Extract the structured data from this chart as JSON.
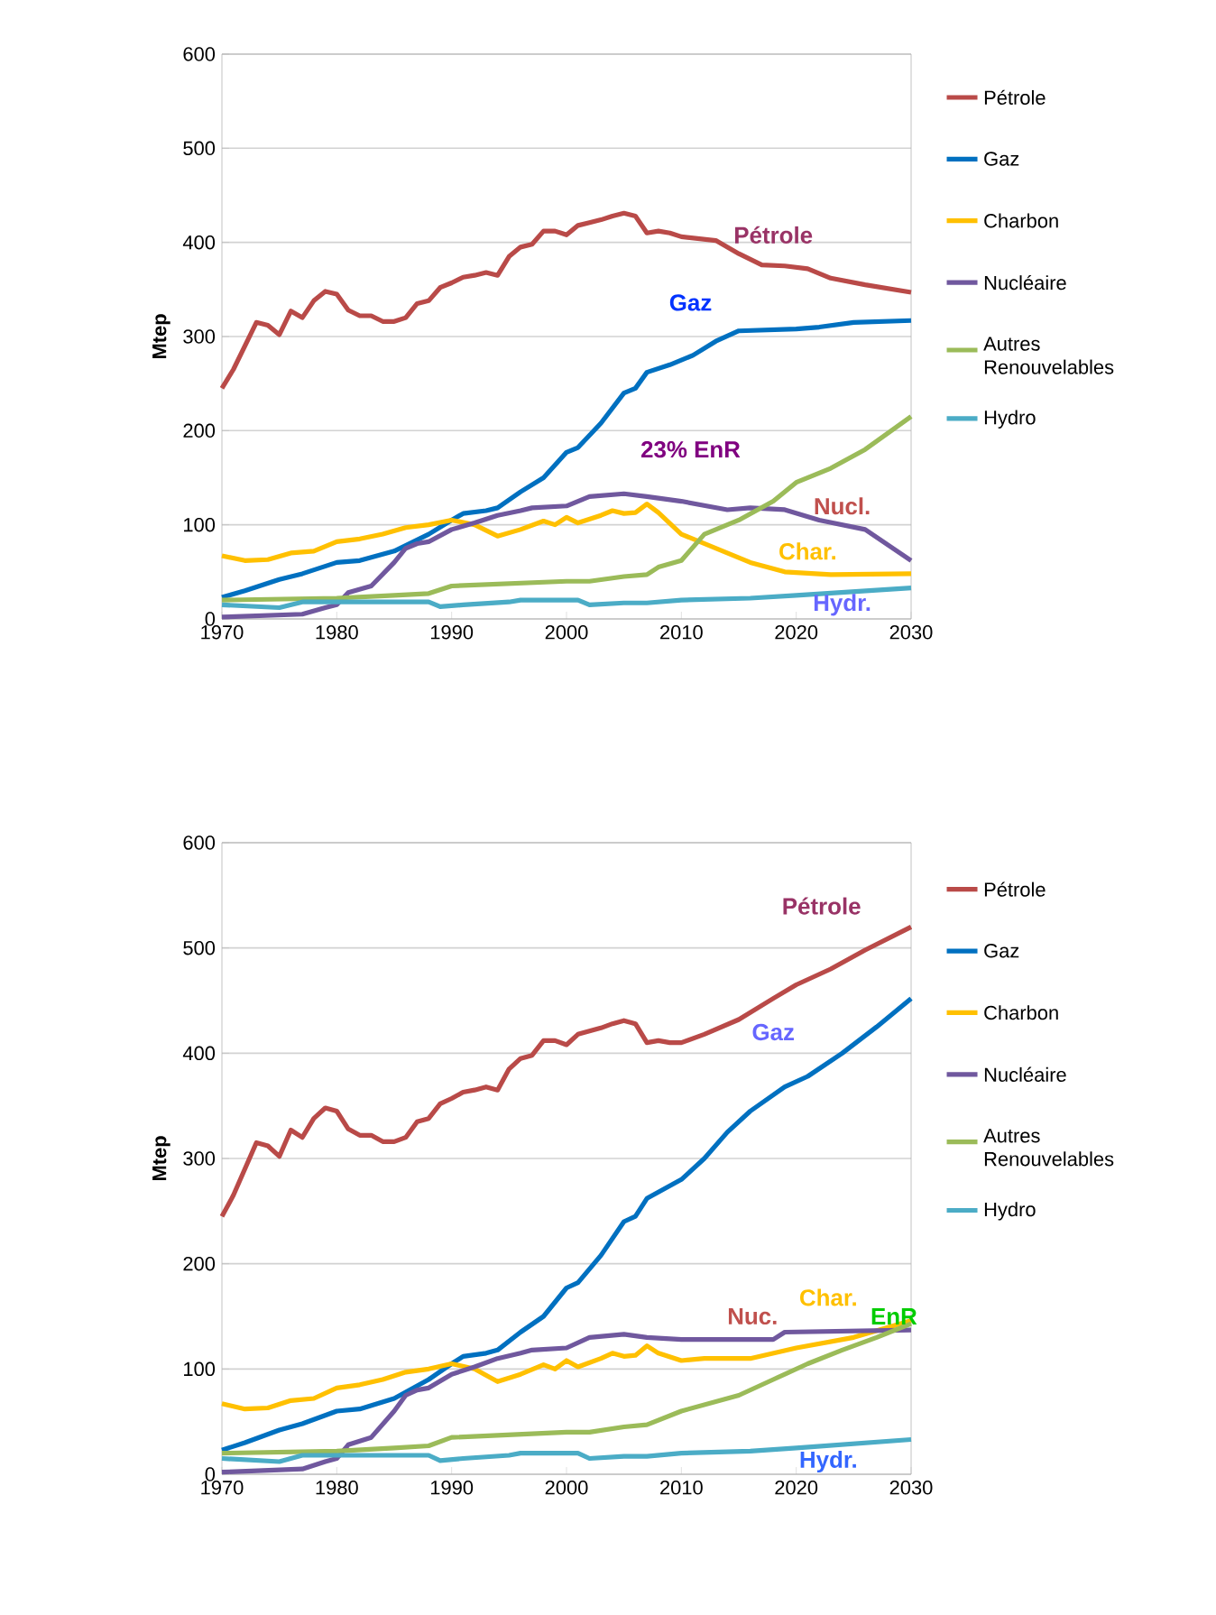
{
  "chart_data": [
    {
      "type": "line",
      "ylabel": "Mtep",
      "xlim": [
        1970,
        2030
      ],
      "xticks": [
        1970,
        1980,
        1990,
        2000,
        2010,
        2020,
        2030
      ],
      "ylim": [
        0,
        600
      ],
      "yticks": [
        0,
        100,
        200,
        300,
        400,
        500,
        600
      ],
      "grid": "y",
      "legend": "right",
      "marker": "none",
      "line_style": "solid",
      "series": [
        {
          "name": "Pétrole",
          "color": "#b94a48",
          "x": [
            1970,
            1971,
            1973,
            1974,
            1975,
            1976,
            1977,
            1978,
            1979,
            1980,
            1981,
            1982,
            1983,
            1984,
            1985,
            1986,
            1987,
            1988,
            1989,
            1990,
            1991,
            1992,
            1993,
            1994,
            1995,
            1996,
            1997,
            1998,
            1999,
            2000,
            2001,
            2002,
            2003,
            2004,
            2005,
            2006,
            2007,
            2008,
            2009,
            2010,
            2013,
            2015,
            2017,
            2019,
            2021,
            2023,
            2026,
            2030
          ],
          "values": [
            245,
            265,
            315,
            312,
            302,
            327,
            320,
            338,
            348,
            345,
            328,
            322,
            322,
            316,
            316,
            320,
            335,
            338,
            352,
            357,
            363,
            365,
            368,
            365,
            385,
            395,
            398,
            412,
            412,
            408,
            418,
            421,
            424,
            428,
            431,
            428,
            410,
            412,
            410,
            406,
            402,
            388,
            376,
            375,
            372,
            362,
            355,
            347
          ]
        },
        {
          "name": "Gaz",
          "color": "#0070c0",
          "x": [
            1970,
            1972,
            1975,
            1977,
            1980,
            1982,
            1985,
            1988,
            1990,
            1991,
            1993,
            1994,
            1996,
            1998,
            2000,
            2001,
            2003,
            2005,
            2006,
            2007,
            2009,
            2011,
            2013,
            2015,
            2020,
            2022,
            2025,
            2030
          ],
          "values": [
            23,
            30,
            42,
            48,
            60,
            62,
            72,
            90,
            105,
            112,
            115,
            118,
            135,
            150,
            177,
            182,
            208,
            240,
            245,
            262,
            270,
            280,
            295,
            306,
            308,
            310,
            315,
            317
          ]
        },
        {
          "name": "Charbon",
          "color": "#ffc000",
          "x": [
            1970,
            1972,
            1974,
            1976,
            1978,
            1980,
            1982,
            1984,
            1986,
            1988,
            1990,
            1992,
            1994,
            1996,
            1998,
            1999,
            2000,
            2001,
            2003,
            2004,
            2005,
            2006,
            2007,
            2008,
            2010,
            2013,
            2016,
            2019,
            2023,
            2030
          ],
          "values": [
            67,
            62,
            63,
            70,
            72,
            82,
            85,
            90,
            97,
            100,
            105,
            100,
            88,
            95,
            104,
            100,
            108,
            102,
            110,
            115,
            112,
            113,
            122,
            113,
            90,
            75,
            60,
            50,
            47,
            48
          ]
        },
        {
          "name": "Nucléaire",
          "color": "#70589e",
          "x": [
            1970,
            1977,
            1979,
            1980,
            1981,
            1983,
            1985,
            1986,
            1987,
            1988,
            1990,
            1992,
            1994,
            1996,
            1997,
            2000,
            2002,
            2005,
            2007,
            2010,
            2014,
            2016,
            2019,
            2022,
            2026,
            2030
          ],
          "values": [
            2,
            5,
            12,
            15,
            28,
            35,
            60,
            75,
            80,
            82,
            95,
            102,
            110,
            115,
            118,
            120,
            130,
            133,
            130,
            125,
            116,
            118,
            116,
            105,
            95,
            62
          ]
        },
        {
          "name": "Autres Renouvelables",
          "color": "#9bbb59",
          "x": [
            1970,
            1980,
            1985,
            1988,
            1990,
            2000,
            2002,
            2005,
            2007,
            2008,
            2010,
            2012,
            2015,
            2018,
            2020,
            2023,
            2026,
            2030
          ],
          "values": [
            20,
            22,
            25,
            27,
            35,
            40,
            40,
            45,
            47,
            55,
            62,
            90,
            105,
            125,
            145,
            160,
            180,
            215
          ]
        },
        {
          "name": "Hydro",
          "color": "#4bacc6",
          "x": [
            1970,
            1975,
            1977,
            1988,
            1989,
            1991,
            1995,
            1996,
            2001,
            2002,
            2005,
            2007,
            2010,
            2016,
            2020,
            2030
          ],
          "values": [
            15,
            12,
            18,
            18,
            13,
            15,
            18,
            20,
            20,
            15,
            17,
            17,
            20,
            22,
            25,
            33
          ]
        }
      ],
      "annotations": [
        "Pétrole",
        "Gaz",
        "23% EnR",
        "Nucl.",
        "Char.",
        "Hydr."
      ]
    },
    {
      "type": "line",
      "ylabel": "Mtep",
      "xlim": [
        1970,
        2030
      ],
      "xticks": [
        1970,
        1980,
        1990,
        2000,
        2010,
        2020,
        2030
      ],
      "ylim": [
        0,
        600
      ],
      "yticks": [
        0,
        100,
        200,
        300,
        400,
        500,
        600
      ],
      "grid": "y",
      "legend": "right",
      "marker": "none",
      "line_style": "solid",
      "series": [
        {
          "name": "Pétrole",
          "color": "#b94a48",
          "x": [
            1970,
            1971,
            1973,
            1974,
            1975,
            1976,
            1977,
            1978,
            1979,
            1980,
            1981,
            1982,
            1983,
            1984,
            1985,
            1986,
            1987,
            1988,
            1989,
            1990,
            1991,
            1992,
            1993,
            1994,
            1995,
            1996,
            1997,
            1998,
            1999,
            2000,
            2001,
            2002,
            2003,
            2004,
            2005,
            2006,
            2007,
            2008,
            2009,
            2010,
            2012,
            2015,
            2018,
            2020,
            2023,
            2026,
            2030
          ],
          "values": [
            245,
            265,
            315,
            312,
            302,
            327,
            320,
            338,
            348,
            345,
            328,
            322,
            322,
            316,
            316,
            320,
            335,
            338,
            352,
            357,
            363,
            365,
            368,
            365,
            385,
            395,
            398,
            412,
            412,
            408,
            418,
            421,
            424,
            428,
            431,
            428,
            410,
            412,
            410,
            410,
            418,
            432,
            452,
            465,
            480,
            498,
            520
          ]
        },
        {
          "name": "Gaz",
          "color": "#0070c0",
          "x": [
            1970,
            1972,
            1975,
            1977,
            1980,
            1982,
            1985,
            1988,
            1990,
            1991,
            1993,
            1994,
            1996,
            1998,
            2000,
            2001,
            2003,
            2005,
            2006,
            2007,
            2010,
            2012,
            2014,
            2016,
            2019,
            2021,
            2024,
            2027,
            2030
          ],
          "values": [
            23,
            30,
            42,
            48,
            60,
            62,
            72,
            90,
            105,
            112,
            115,
            118,
            135,
            150,
            177,
            182,
            208,
            240,
            245,
            262,
            280,
            300,
            325,
            345,
            368,
            378,
            400,
            425,
            452
          ]
        },
        {
          "name": "Charbon",
          "color": "#ffc000",
          "x": [
            1970,
            1972,
            1974,
            1976,
            1978,
            1980,
            1982,
            1984,
            1986,
            1988,
            1990,
            1992,
            1994,
            1996,
            1998,
            1999,
            2000,
            2001,
            2003,
            2004,
            2005,
            2006,
            2007,
            2008,
            2010,
            2012,
            2016,
            2020,
            2025,
            2030
          ],
          "values": [
            67,
            62,
            63,
            70,
            72,
            82,
            85,
            90,
            97,
            100,
            105,
            100,
            88,
            95,
            104,
            100,
            108,
            102,
            110,
            115,
            112,
            113,
            122,
            115,
            108,
            110,
            110,
            120,
            130,
            146
          ]
        },
        {
          "name": "Nucléaire",
          "color": "#70589e",
          "x": [
            1970,
            1977,
            1979,
            1980,
            1981,
            1983,
            1985,
            1986,
            1987,
            1988,
            1990,
            1992,
            1994,
            1996,
            1997,
            2000,
            2002,
            2005,
            2007,
            2010,
            2018,
            2019,
            2030
          ],
          "values": [
            2,
            5,
            12,
            15,
            28,
            35,
            60,
            75,
            80,
            82,
            95,
            102,
            110,
            115,
            118,
            120,
            130,
            133,
            130,
            128,
            128,
            135,
            137
          ]
        },
        {
          "name": "Autres Renouvelables",
          "color": "#9bbb59",
          "x": [
            1970,
            1980,
            1985,
            1988,
            1990,
            2000,
            2002,
            2005,
            2007,
            2010,
            2015,
            2018,
            2021,
            2024,
            2027,
            2030
          ],
          "values": [
            20,
            22,
            25,
            27,
            35,
            40,
            40,
            45,
            47,
            60,
            75,
            90,
            105,
            118,
            130,
            143
          ]
        },
        {
          "name": "Hydro",
          "color": "#4bacc6",
          "x": [
            1970,
            1975,
            1977,
            1988,
            1989,
            1991,
            1995,
            1996,
            2001,
            2002,
            2005,
            2007,
            2010,
            2016,
            2020,
            2030
          ],
          "values": [
            15,
            12,
            18,
            18,
            13,
            15,
            18,
            20,
            20,
            15,
            17,
            17,
            20,
            22,
            25,
            33
          ]
        }
      ],
      "annotations": [
        "Pétrole",
        "Gaz",
        "Char.",
        "EnR",
        "Nuc.",
        "Hydr."
      ]
    }
  ]
}
